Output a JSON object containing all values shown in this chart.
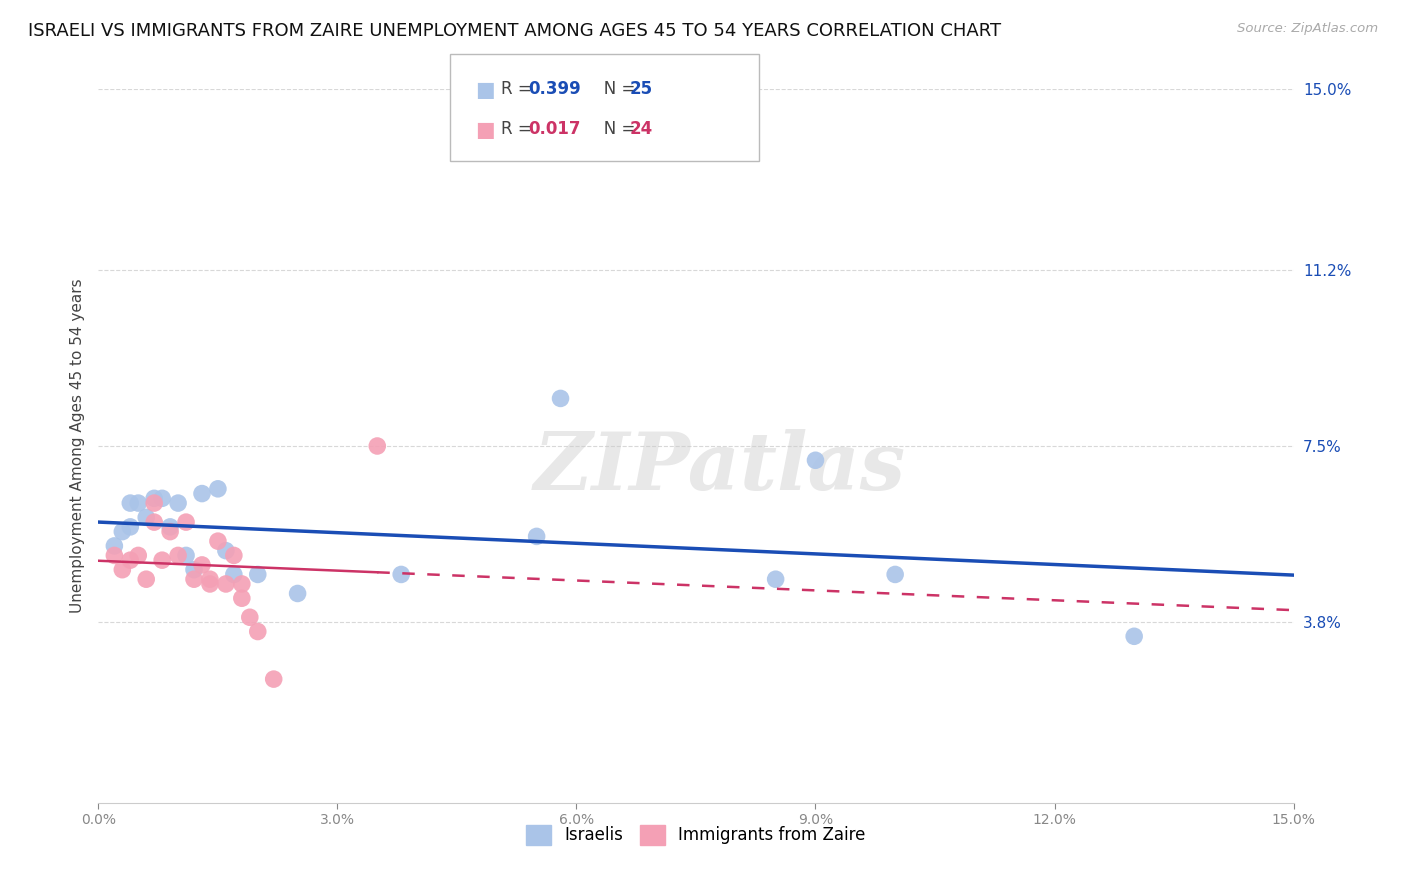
{
  "title": "ISRAELI VS IMMIGRANTS FROM ZAIRE UNEMPLOYMENT AMONG AGES 45 TO 54 YEARS CORRELATION CHART",
  "source": "Source: ZipAtlas.com",
  "ylabel": "Unemployment Among Ages 45 to 54 years",
  "xlim": [
    0.0,
    0.15
  ],
  "ylim": [
    0.0,
    0.15
  ],
  "xtick_positions": [
    0.0,
    0.03,
    0.06,
    0.09,
    0.12,
    0.15
  ],
  "xtick_labels": [
    "0.0%",
    "3.0%",
    "6.0%",
    "9.0%",
    "12.0%",
    "15.0%"
  ],
  "ytick_positions": [
    0.038,
    0.075,
    0.112,
    0.15
  ],
  "ytick_labels": [
    "3.8%",
    "7.5%",
    "11.2%",
    "15.0%"
  ],
  "legend_R1": "0.399",
  "legend_N1": "25",
  "legend_R2": "0.017",
  "legend_N2": "24",
  "watermark": "ZIPatlas",
  "israelis_x": [
    0.002,
    0.003,
    0.004,
    0.004,
    0.005,
    0.006,
    0.007,
    0.008,
    0.009,
    0.01,
    0.011,
    0.012,
    0.013,
    0.015,
    0.016,
    0.017,
    0.02,
    0.025,
    0.038,
    0.055,
    0.058,
    0.085,
    0.09,
    0.1,
    0.13
  ],
  "israelis_y": [
    0.054,
    0.057,
    0.058,
    0.063,
    0.063,
    0.06,
    0.064,
    0.064,
    0.058,
    0.063,
    0.052,
    0.049,
    0.065,
    0.066,
    0.053,
    0.048,
    0.048,
    0.044,
    0.048,
    0.056,
    0.085,
    0.047,
    0.072,
    0.048,
    0.035
  ],
  "zaire_x": [
    0.002,
    0.003,
    0.004,
    0.005,
    0.006,
    0.007,
    0.007,
    0.008,
    0.009,
    0.01,
    0.011,
    0.012,
    0.013,
    0.014,
    0.014,
    0.015,
    0.016,
    0.017,
    0.018,
    0.018,
    0.019,
    0.02,
    0.022,
    0.035
  ],
  "zaire_y": [
    0.052,
    0.049,
    0.051,
    0.052,
    0.047,
    0.063,
    0.059,
    0.051,
    0.057,
    0.052,
    0.059,
    0.047,
    0.05,
    0.046,
    0.047,
    0.055,
    0.046,
    0.052,
    0.043,
    0.046,
    0.039,
    0.036,
    0.026,
    0.075
  ],
  "israeli_color": "#aac4e8",
  "zaire_color": "#f4a0b5",
  "israeli_line_color": "#1a4db5",
  "zaire_line_color": "#cc3366",
  "background_color": "#ffffff",
  "grid_color": "#d8d8d8",
  "title_fontsize": 13,
  "axis_label_fontsize": 11
}
